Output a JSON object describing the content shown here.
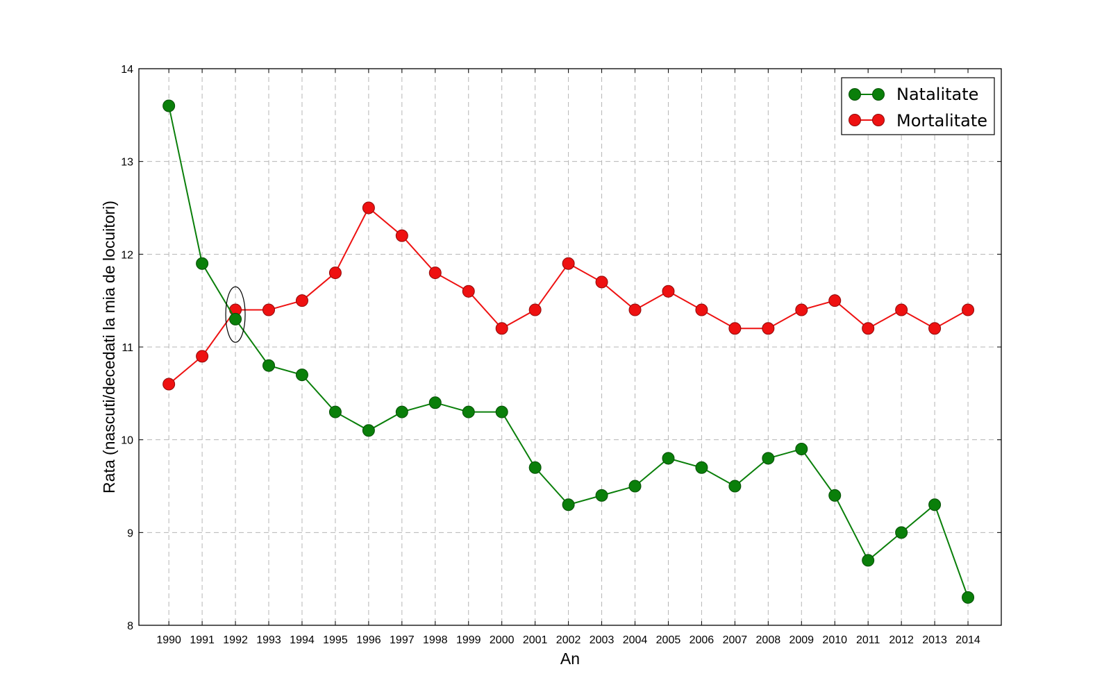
{
  "chart_data": {
    "type": "line",
    "x": [
      1990,
      1991,
      1992,
      1993,
      1994,
      1995,
      1996,
      1997,
      1998,
      1999,
      2000,
      2001,
      2002,
      2003,
      2004,
      2005,
      2006,
      2007,
      2008,
      2009,
      2010,
      2011,
      2012,
      2013,
      2014
    ],
    "x_tick_labels": [
      "1990",
      "1991",
      "1992",
      "1993",
      "1994",
      "1995",
      "1996",
      "1997",
      "1998",
      "1999",
      "2000",
      "2001",
      "2002",
      "2003",
      "2004",
      "2005",
      "2006",
      "2007",
      "2008",
      "2009",
      "2010",
      "2011",
      "2012",
      "2013",
      "2014"
    ],
    "series": [
      {
        "name": "Natalitate",
        "color": "#0a7f0a",
        "values": [
          13.6,
          11.9,
          11.3,
          10.8,
          10.7,
          10.3,
          10.1,
          10.3,
          10.4,
          10.3,
          10.3,
          9.7,
          9.3,
          9.4,
          9.5,
          9.8,
          9.7,
          9.5,
          9.8,
          9.9,
          9.4,
          8.7,
          9.0,
          9.3,
          8.3
        ]
      },
      {
        "name": "Mortalitate",
        "color": "#ee1111",
        "values": [
          10.6,
          10.9,
          11.4,
          11.4,
          11.5,
          11.8,
          12.5,
          12.2,
          11.8,
          11.6,
          11.2,
          11.4,
          11.9,
          11.7,
          11.4,
          11.6,
          11.4,
          11.2,
          11.2,
          11.4,
          11.5,
          11.2,
          11.4,
          11.2,
          11.4
        ]
      }
    ],
    "y_ticks": [
      8,
      9,
      10,
      11,
      12,
      13,
      14
    ],
    "y_tick_labels": [
      "8",
      "9",
      "10",
      "11",
      "12",
      "13",
      "14"
    ],
    "xlim": [
      1989.1,
      2015.0
    ],
    "ylim": [
      8,
      14
    ],
    "xlabel": "An",
    "ylabel": "Rata (nascuti/decedati la mia de locuitori)",
    "grid": true,
    "legend_position": "top-right",
    "annotation": {
      "type": "ellipse",
      "x": 1992,
      "y": 11.35,
      "note": "crossover highlight"
    }
  }
}
